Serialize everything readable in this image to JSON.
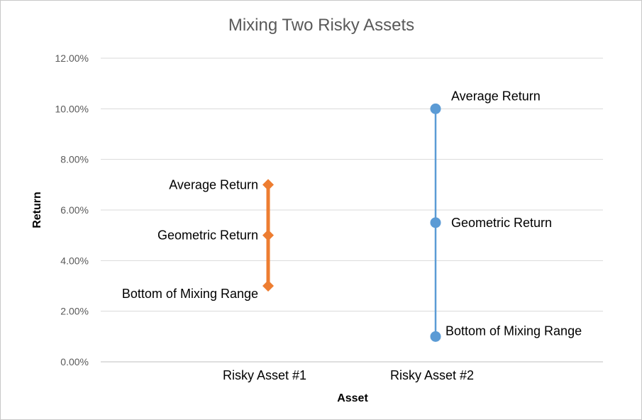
{
  "chart_data": {
    "type": "line",
    "title": "Mixing Two Risky Assets",
    "xlabel": "Asset",
    "ylabel": "Return",
    "categories": [
      "Risky Asset #1",
      "Risky Asset #2"
    ],
    "ylim": [
      0,
      0.12
    ],
    "yticks": [
      "0.00%",
      "2.00%",
      "4.00%",
      "6.00%",
      "8.00%",
      "10.00%",
      "12.00%"
    ],
    "grid": true,
    "series": [
      {
        "category": "Risky Asset #1",
        "color": "#ed7d31",
        "marker": "diamond",
        "points": [
          {
            "label": "Average Return",
            "value": 0.07
          },
          {
            "label": "Geometric Return",
            "value": 0.05
          },
          {
            "label": "Bottom of Mixing Range",
            "value": 0.03
          }
        ]
      },
      {
        "category": "Risky Asset #2",
        "color": "#5b9bd5",
        "marker": "circle",
        "points": [
          {
            "label": "Average Return",
            "value": 0.1
          },
          {
            "label": "Geometric Return",
            "value": 0.055
          },
          {
            "label": "Bottom of Mixing Range",
            "value": 0.01
          }
        ]
      }
    ]
  }
}
